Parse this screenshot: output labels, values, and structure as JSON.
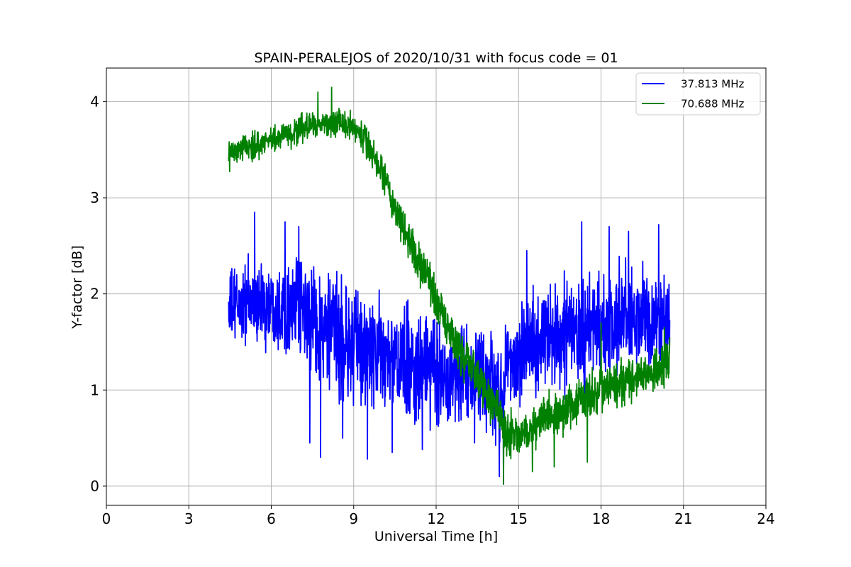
{
  "chart_data": {
    "type": "line",
    "title": "SPAIN-PERALEJOS of 2020/10/31 with focus code = 01",
    "xlabel": "Universal Time [h]",
    "ylabel": "Y-factor [dB]",
    "xlim": [
      0,
      24
    ],
    "ylim": [
      -0.2,
      4.35
    ],
    "xticks": [
      0,
      3,
      6,
      9,
      12,
      15,
      18,
      21,
      24
    ],
    "yticks": [
      0,
      1,
      2,
      3,
      4
    ],
    "grid": true,
    "legend_position": "top-right",
    "x_start": 4.45,
    "x_end": 20.5,
    "series": [
      {
        "name": "37.813 MHz",
        "color": "#0000ff",
        "trend": [
          [
            4.45,
            1.85
          ],
          [
            5.0,
            1.9
          ],
          [
            6.0,
            1.9
          ],
          [
            7.0,
            1.85
          ],
          [
            8.0,
            1.6
          ],
          [
            9.0,
            1.45
          ],
          [
            10.0,
            1.35
          ],
          [
            11.0,
            1.25
          ],
          [
            12.0,
            1.2
          ],
          [
            13.0,
            1.15
          ],
          [
            14.0,
            1.1
          ],
          [
            14.3,
            0.9
          ],
          [
            14.6,
            1.3
          ],
          [
            15.5,
            1.5
          ],
          [
            17.0,
            1.6
          ],
          [
            18.5,
            1.7
          ],
          [
            20.5,
            1.75
          ]
        ],
        "spread": [
          [
            4.45,
            0.35
          ],
          [
            7.0,
            0.4
          ],
          [
            8.0,
            0.55
          ],
          [
            11.0,
            0.5
          ],
          [
            14.0,
            0.45
          ],
          [
            15.0,
            0.45
          ],
          [
            18.0,
            0.5
          ],
          [
            20.5,
            0.45
          ]
        ],
        "spikes": [
          [
            5.4,
            2.85
          ],
          [
            6.5,
            2.75
          ],
          [
            7.0,
            2.7
          ],
          [
            7.4,
            0.45
          ],
          [
            7.8,
            0.3
          ],
          [
            8.6,
            0.5
          ],
          [
            9.5,
            0.28
          ],
          [
            10.4,
            0.35
          ],
          [
            11.5,
            0.38
          ],
          [
            13.4,
            0.45
          ],
          [
            14.3,
            0.1
          ],
          [
            14.45,
            0.02
          ],
          [
            15.3,
            2.45
          ],
          [
            17.3,
            2.75
          ],
          [
            18.3,
            2.7
          ],
          [
            19.0,
            2.65
          ],
          [
            20.1,
            2.72
          ]
        ]
      },
      {
        "name": "70.688 MHz",
        "color": "#008000",
        "trend": [
          [
            4.45,
            3.45
          ],
          [
            5.5,
            3.55
          ],
          [
            6.5,
            3.65
          ],
          [
            7.5,
            3.75
          ],
          [
            8.5,
            3.8
          ],
          [
            9.2,
            3.7
          ],
          [
            9.7,
            3.45
          ],
          [
            10.2,
            3.1
          ],
          [
            10.8,
            2.7
          ],
          [
            11.5,
            2.25
          ],
          [
            12.2,
            1.8
          ],
          [
            13.0,
            1.35
          ],
          [
            13.8,
            1.0
          ],
          [
            14.3,
            0.75
          ],
          [
            14.45,
            0.55
          ],
          [
            15.0,
            0.5
          ],
          [
            16.0,
            0.7
          ],
          [
            17.0,
            0.85
          ],
          [
            18.0,
            1.0
          ],
          [
            19.0,
            1.1
          ],
          [
            20.0,
            1.2
          ],
          [
            20.5,
            1.3
          ]
        ],
        "spread": [
          [
            4.45,
            0.12
          ],
          [
            9.0,
            0.12
          ],
          [
            10.0,
            0.18
          ],
          [
            12.0,
            0.2
          ],
          [
            14.0,
            0.2
          ],
          [
            15.0,
            0.2
          ],
          [
            18.0,
            0.2
          ],
          [
            20.5,
            0.2
          ]
        ],
        "spikes": [
          [
            8.2,
            4.15
          ],
          [
            7.7,
            4.1
          ],
          [
            14.45,
            0.02
          ],
          [
            15.5,
            0.15
          ],
          [
            16.3,
            0.2
          ],
          [
            17.5,
            0.25
          ],
          [
            18.0,
            1.7
          ],
          [
            20.3,
            1.65
          ]
        ]
      }
    ]
  }
}
